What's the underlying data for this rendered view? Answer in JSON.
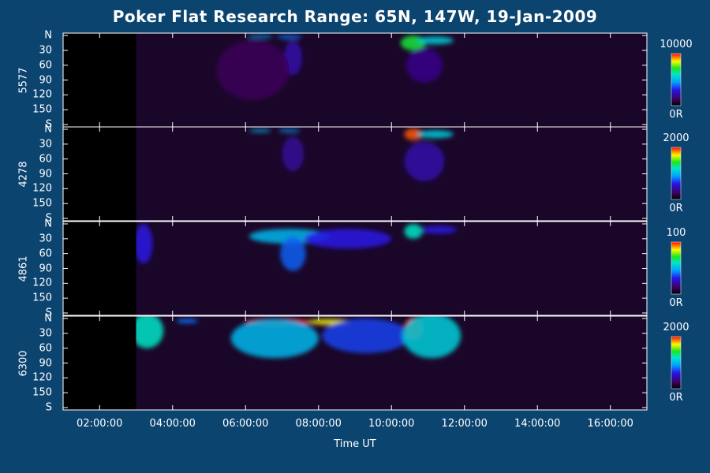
{
  "chart_data": {
    "type": "heatmap",
    "title": "Poker Flat Research Range: 65N, 147W, 19-Jan-2009",
    "xlabel": "Time UT",
    "x_tick_labels": [
      "02:00:00",
      "04:00:00",
      "06:00:00",
      "08:00:00",
      "10:00:00",
      "12:00:00",
      "14:00:00",
      "16:00:00"
    ],
    "x_tick_hours": [
      2,
      4,
      6,
      8,
      10,
      12,
      14,
      16
    ],
    "x_range_hours": [
      1.0,
      17.0
    ],
    "data_start_hour": 3.0,
    "y_tick_labels": [
      "N",
      "30",
      "60",
      "90",
      "120",
      "150",
      "S"
    ],
    "y_tick_values": [
      0,
      30,
      60,
      90,
      120,
      150,
      180
    ],
    "y_range": [
      0,
      180
    ],
    "panels": [
      {
        "label": "5577",
        "cbar_max": "10000",
        "cbar_min": "0R",
        "features": [
          {
            "t": 6.4,
            "y": 2,
            "w": 0.35,
            "h": 3,
            "v": 0.45
          },
          {
            "t": 7.2,
            "y": 3,
            "w": 0.35,
            "h": 4,
            "v": 0.4
          },
          {
            "t": 7.3,
            "y": 45,
            "w": 0.25,
            "h": 35,
            "v": 0.22
          },
          {
            "t": 10.6,
            "y": 15,
            "w": 0.35,
            "h": 15,
            "v": 0.7
          },
          {
            "t": 11.2,
            "y": 10,
            "w": 0.5,
            "h": 8,
            "v": 0.55
          },
          {
            "t": 10.9,
            "y": 60,
            "w": 0.5,
            "h": 35,
            "v": 0.18
          },
          {
            "t": 6.2,
            "y": 70,
            "w": 1.0,
            "h": 60,
            "v": 0.12
          }
        ]
      },
      {
        "label": "4278",
        "cbar_max": "2000",
        "cbar_min": "0R",
        "features": [
          {
            "t": 6.4,
            "y": 3,
            "w": 0.3,
            "h": 3,
            "v": 0.5
          },
          {
            "t": 7.2,
            "y": 3,
            "w": 0.3,
            "h": 3,
            "v": 0.45
          },
          {
            "t": 10.6,
            "y": 10,
            "w": 0.25,
            "h": 12,
            "v": 0.95
          },
          {
            "t": 11.2,
            "y": 10,
            "w": 0.5,
            "h": 8,
            "v": 0.55
          },
          {
            "t": 10.9,
            "y": 65,
            "w": 0.55,
            "h": 40,
            "v": 0.22
          },
          {
            "t": 7.3,
            "y": 50,
            "w": 0.3,
            "h": 35,
            "v": 0.2
          }
        ]
      },
      {
        "label": "4861",
        "cbar_max": "100",
        "cbar_min": "0R",
        "features": [
          {
            "t": 7.2,
            "y": 25,
            "w": 1.1,
            "h": 15,
            "v": 0.5
          },
          {
            "t": 7.3,
            "y": 60,
            "w": 0.35,
            "h": 35,
            "v": 0.38
          },
          {
            "t": 8.8,
            "y": 30,
            "w": 1.2,
            "h": 20,
            "v": 0.3
          },
          {
            "t": 10.6,
            "y": 15,
            "w": 0.25,
            "h": 15,
            "v": 0.6
          },
          {
            "t": 11.3,
            "y": 12,
            "w": 0.5,
            "h": 8,
            "v": 0.3
          },
          {
            "t": 3.2,
            "y": 40,
            "w": 0.25,
            "h": 40,
            "v": 0.3
          }
        ]
      },
      {
        "label": "6300",
        "cbar_max": "2000",
        "cbar_min": "0R",
        "features": [
          {
            "t": 6.9,
            "y": 7,
            "w": 0.9,
            "h": 7,
            "v": 1.0
          },
          {
            "t": 8.3,
            "y": 7,
            "w": 0.6,
            "h": 6,
            "v": 0.85
          },
          {
            "t": 6.8,
            "y": 40,
            "w": 1.2,
            "h": 40,
            "v": 0.5
          },
          {
            "t": 9.3,
            "y": 35,
            "w": 1.2,
            "h": 35,
            "v": 0.35
          },
          {
            "t": 10.6,
            "y": 20,
            "w": 0.25,
            "h": 22,
            "v": 1.0
          },
          {
            "t": 11.1,
            "y": 35,
            "w": 0.8,
            "h": 45,
            "v": 0.55
          },
          {
            "t": 3.3,
            "y": 25,
            "w": 0.45,
            "h": 35,
            "v": 0.6
          },
          {
            "t": 4.4,
            "y": 5,
            "w": 0.3,
            "h": 5,
            "v": 0.4
          }
        ]
      }
    ]
  },
  "colors": {
    "background": "#0c4470",
    "frame": "#ffffff",
    "nodata": "#000000"
  }
}
